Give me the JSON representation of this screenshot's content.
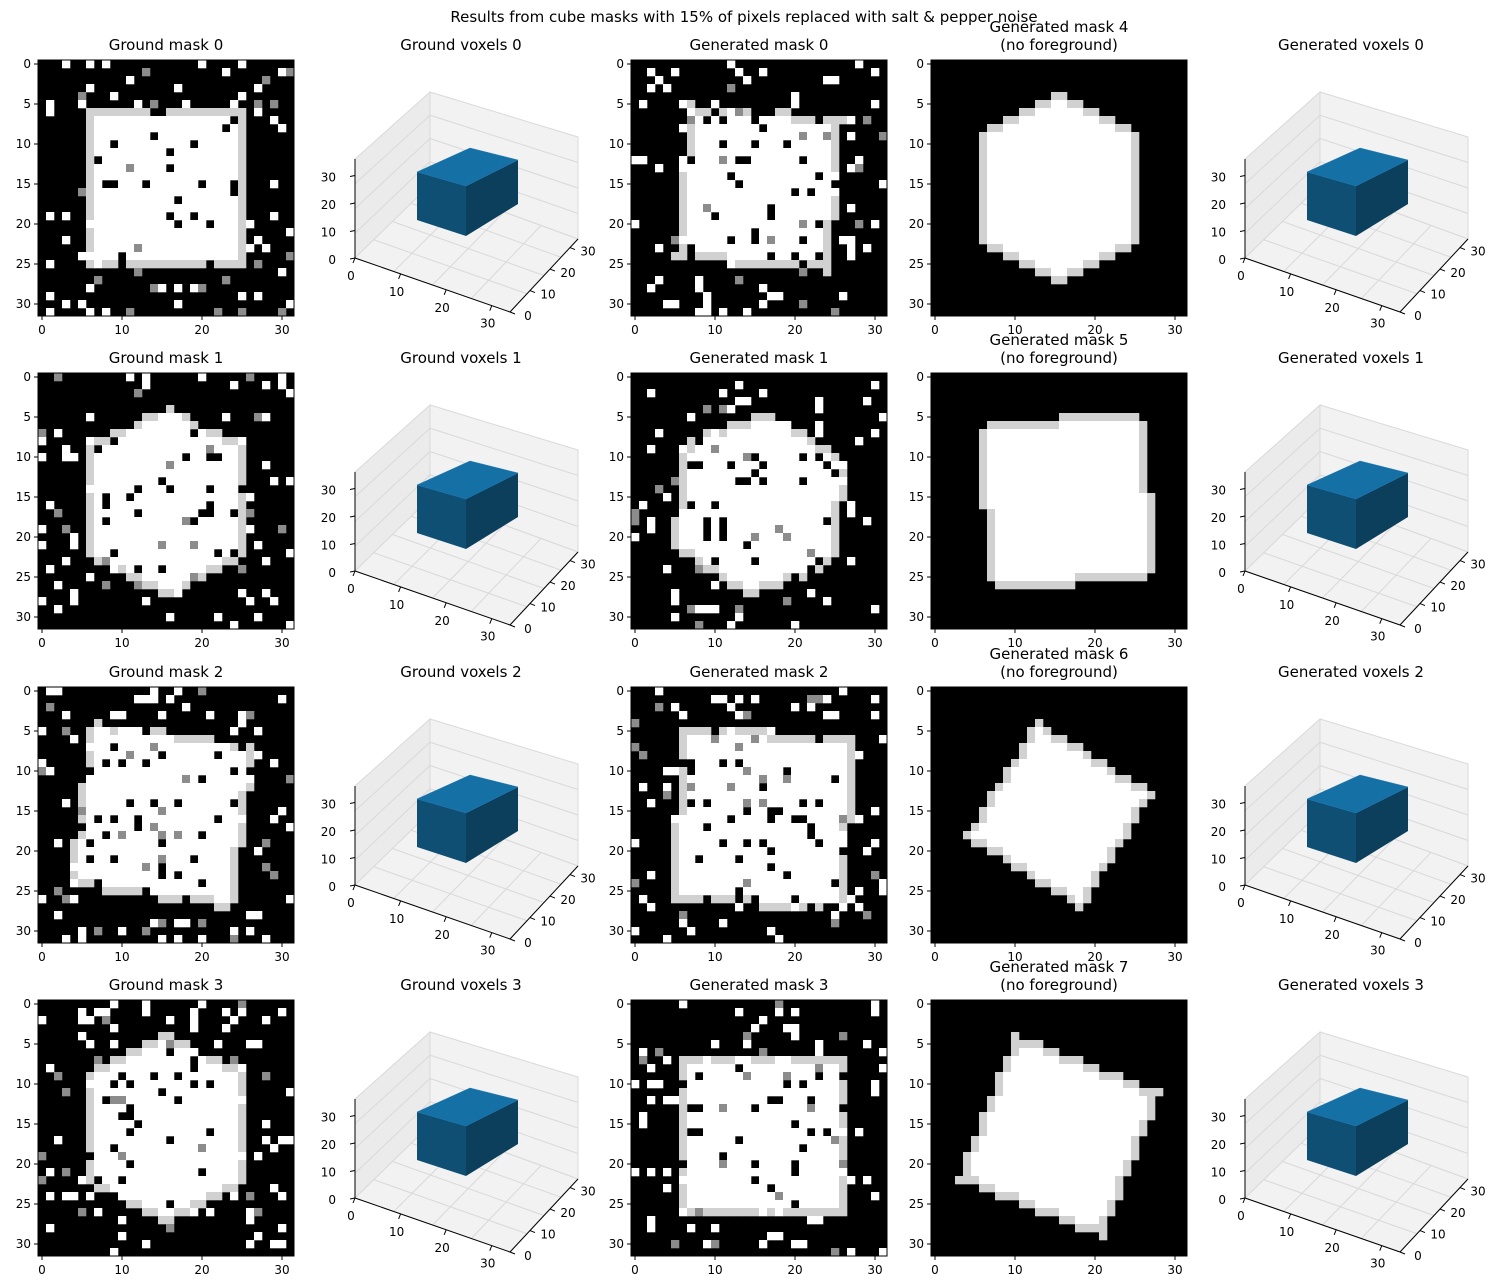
{
  "figure": {
    "suptitle": "Results from cube masks with 15% of pixels replaced with salt & pepper noise"
  },
  "chart_data": {
    "type": "heatmap",
    "grid_size": 32,
    "colormap": "gray",
    "cube_color": "#1f77b4",
    "image_ticks": [
      0,
      5,
      10,
      15,
      20,
      25,
      30
    ],
    "image_xticks": [
      0,
      10,
      20,
      30
    ],
    "voxel_ticks": [
      0,
      10,
      20,
      30
    ],
    "rows": [
      {
        "ground_mask": {
          "title": "Ground mask 0",
          "shape": {
            "cx": 15.5,
            "cy": 15.5,
            "half": 9.8,
            "rot": 0,
            "kind": "square"
          },
          "seed": 11
        },
        "ground_voxels": {
          "title": "Ground voxels 0"
        },
        "gen_mask": {
          "title": "Generated mask 0",
          "shape": {
            "cx": 15.5,
            "cy": 15.5,
            "half": 9.8,
            "rot": 5,
            "kind": "square"
          },
          "seed": 23
        },
        "gen_mask_clean": {
          "title": "Generated mask 4",
          "subtitle": "(no foreground)",
          "shape": {
            "cx": 15.5,
            "cy": 15.5,
            "half": 11.5,
            "rot": 0,
            "kind": "hexagon"
          }
        },
        "gen_voxels": {
          "title": "Generated voxels 0"
        }
      },
      {
        "ground_mask": {
          "title": "Ground mask 1",
          "shape": {
            "cx": 15.5,
            "cy": 15.5,
            "half": 11.5,
            "rot": 0,
            "kind": "hexagon"
          },
          "seed": 37
        },
        "ground_voxels": {
          "title": "Ground voxels 1"
        },
        "gen_mask": {
          "title": "Generated mask 1",
          "shape": {
            "cx": 15.5,
            "cy": 15.8,
            "half": 11.5,
            "rot": 8,
            "kind": "hexagon"
          },
          "seed": 41
        },
        "gen_mask_clean": {
          "title": "Generated mask 5",
          "subtitle": "(no foreground)",
          "shape": {
            "cx": 16.5,
            "cy": 15.5,
            "half": 10.5,
            "rot": -6,
            "kind": "square"
          }
        },
        "gen_voxels": {
          "title": "Generated voxels 1"
        }
      },
      {
        "ground_mask": {
          "title": "Ground mask 2",
          "shape": {
            "cx": 15.0,
            "cy": 15.5,
            "half": 10.5,
            "rot": 8,
            "kind": "square"
          },
          "seed": 53
        },
        "ground_voxels": {
          "title": "Ground voxels 2"
        },
        "gen_mask": {
          "title": "Generated mask 2",
          "shape": {
            "cx": 16.0,
            "cy": 16.0,
            "half": 11.0,
            "rot": 3,
            "kind": "square"
          },
          "seed": 67
        },
        "gen_mask_clean": {
          "title": "Generated mask 6",
          "subtitle": "(no foreground)",
          "shape": {
            "cx": 15.5,
            "cy": 15.5,
            "half": 8.6,
            "rot": 32,
            "kind": "square"
          }
        },
        "gen_voxels": {
          "title": "Generated voxels 2"
        }
      },
      {
        "ground_mask": {
          "title": "Ground mask 3",
          "shape": {
            "cx": 15.5,
            "cy": 15.5,
            "half": 11.5,
            "rot": 0,
            "kind": "hexagon"
          },
          "seed": 79
        },
        "ground_voxels": {
          "title": "Ground voxels 3"
        },
        "gen_mask": {
          "title": "Generated mask 3",
          "shape": {
            "cx": 16.0,
            "cy": 16.5,
            "half": 10.0,
            "rot": 0,
            "kind": "square"
          },
          "seed": 83
        },
        "gen_mask_clean": {
          "title": "Generated mask 7",
          "subtitle": "(no foreground)",
          "shape": {
            "cx": 15.5,
            "cy": 16.5,
            "half": 9.8,
            "rot": 22,
            "kind": "square"
          }
        },
        "gen_voxels": {
          "title": "Generated voxels 3"
        }
      }
    ]
  }
}
